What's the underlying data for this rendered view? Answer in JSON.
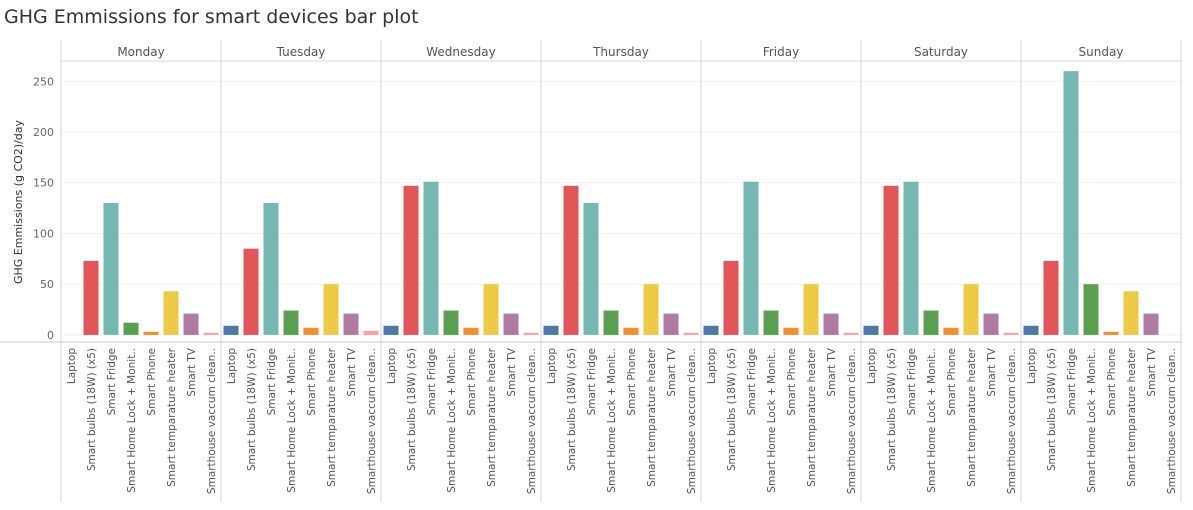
{
  "chart_data": {
    "type": "bar",
    "title": "GHG Emmissions for smart devices bar plot",
    "ylabel": "GHG Emmissions (g CO2)/day",
    "xlabel": "",
    "ylim": [
      -7,
      270
    ],
    "yticks": [
      0,
      50,
      100,
      150,
      200,
      250
    ],
    "grid": true,
    "categories": [
      "Laptop",
      "Smart bulbs (18W) (x5)",
      "Smart Fridge",
      "Smart Home Lock + Monit..",
      "Smart Phone",
      "Smart temparature heater",
      "Smart TV",
      "Smarthouse  vaccum clean.."
    ],
    "colors": [
      "#4e79a7",
      "#e15759",
      "#76b7b2",
      "#59a14f",
      "#f28e2b",
      "#edc948",
      "#b07aa1",
      "#ff9da7"
    ],
    "panels": [
      {
        "name": "Monday",
        "values": [
          0,
          73,
          130,
          12,
          3,
          43,
          21,
          2
        ]
      },
      {
        "name": "Tuesday",
        "values": [
          9,
          85,
          130,
          24,
          7,
          50,
          21,
          4
        ]
      },
      {
        "name": "Wednesday",
        "values": [
          9,
          147,
          151,
          24,
          7,
          50,
          21,
          2
        ]
      },
      {
        "name": "Thursday",
        "values": [
          9,
          147,
          130,
          24,
          7,
          50,
          21,
          2
        ]
      },
      {
        "name": "Friday",
        "values": [
          9,
          73,
          151,
          24,
          7,
          50,
          21,
          2
        ]
      },
      {
        "name": "Saturday",
        "values": [
          9,
          147,
          151,
          24,
          7,
          50,
          21,
          2
        ]
      },
      {
        "name": "Sunday",
        "values": [
          9,
          73,
          260,
          50,
          3,
          43,
          21,
          0
        ]
      }
    ]
  }
}
